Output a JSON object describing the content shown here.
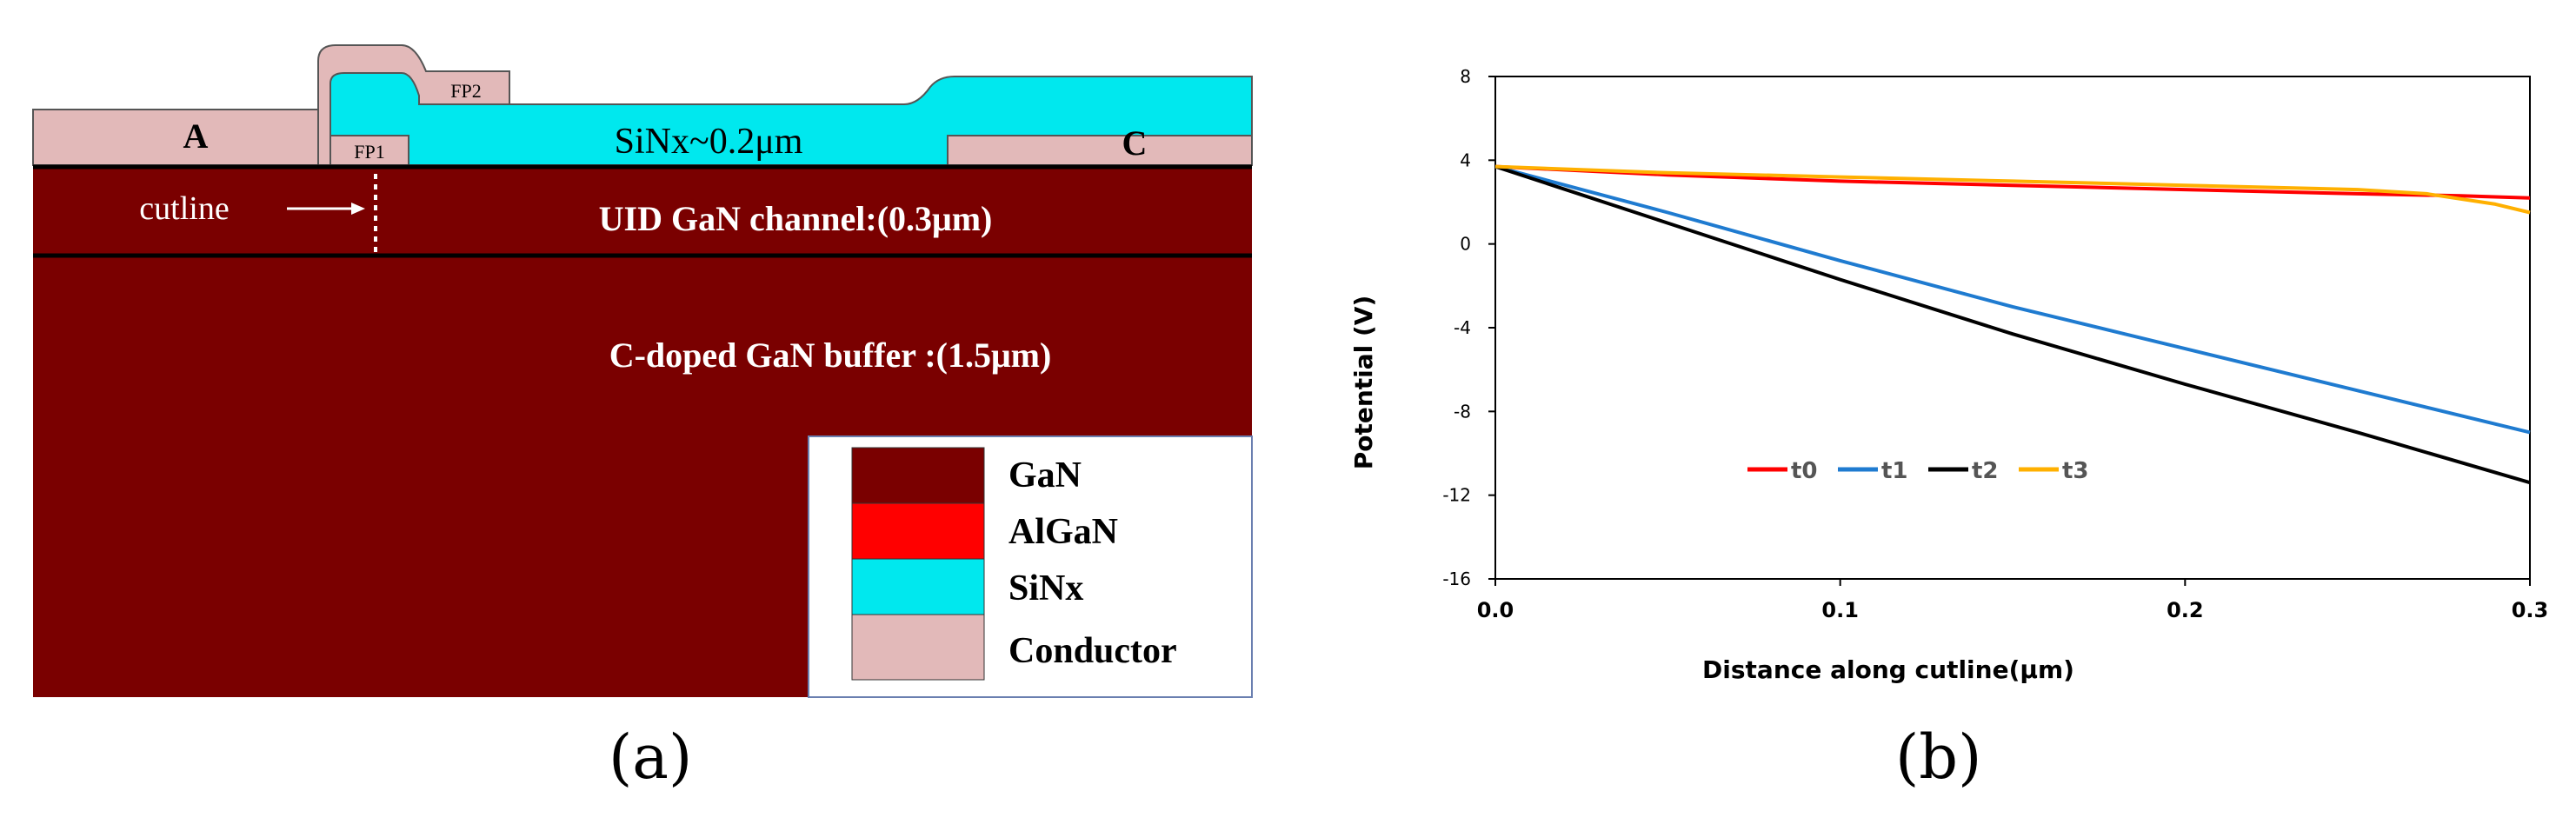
{
  "panel_a": {
    "label": "(a)",
    "region_labels": {
      "anode": "A",
      "cathode": "C",
      "fp1": "FP1",
      "fp2": "FP2",
      "sinx": "SiNx~0.2μm",
      "channel": "UID GaN channel:(0.3μm)",
      "buffer": "C-doped GaN buffer :(1.5μm)",
      "cutline": "cutline"
    },
    "legend": [
      {
        "label": "GaN",
        "color": "#7a0000"
      },
      {
        "label": "AlGaN",
        "color": "#ff0000"
      },
      {
        "label": "SiNx",
        "color": "#00e8ee"
      },
      {
        "label": "Conductor",
        "color": "#e2b9b9"
      }
    ]
  },
  "panel_b": {
    "label": "(b)"
  },
  "chart_data": {
    "type": "line",
    "title": "",
    "xlabel": "Distance along cutline(μm)",
    "ylabel": "Potential (V)",
    "xlim": [
      0.0,
      0.3
    ],
    "ylim": [
      -16,
      8
    ],
    "xticks": [
      0.0,
      0.1,
      0.2,
      0.3
    ],
    "xtick_labels": [
      "0.0",
      "0.1",
      "0.2",
      "0.3"
    ],
    "yticks": [
      8,
      4,
      0,
      -4,
      -8,
      -12,
      -16
    ],
    "ytick_labels": [
      "8",
      "4",
      "0",
      "-4",
      "-8",
      "-12",
      "-16"
    ],
    "grid": false,
    "legend_position": "middle-left",
    "series": [
      {
        "name": "t0",
        "color": "#ff0000",
        "x": [
          0.0,
          0.05,
          0.1,
          0.15,
          0.2,
          0.25,
          0.28,
          0.3
        ],
        "y": [
          3.7,
          3.3,
          3.0,
          2.8,
          2.6,
          2.4,
          2.3,
          2.2
        ]
      },
      {
        "name": "t1",
        "color": "#1f7bd0",
        "x": [
          0.0,
          0.05,
          0.1,
          0.15,
          0.2,
          0.25,
          0.3
        ],
        "y": [
          3.7,
          1.5,
          -0.8,
          -3.0,
          -5.0,
          -7.0,
          -9.0
        ]
      },
      {
        "name": "t2",
        "color": "#000000",
        "x": [
          0.0,
          0.05,
          0.1,
          0.15,
          0.2,
          0.25,
          0.3
        ],
        "y": [
          3.7,
          1.0,
          -1.7,
          -4.3,
          -6.7,
          -9.0,
          -11.4
        ]
      },
      {
        "name": "t3",
        "color": "#ffb000",
        "x": [
          0.0,
          0.05,
          0.1,
          0.15,
          0.2,
          0.25,
          0.27,
          0.29,
          0.3
        ],
        "y": [
          3.7,
          3.4,
          3.2,
          3.0,
          2.8,
          2.6,
          2.4,
          1.9,
          1.5
        ]
      }
    ]
  }
}
